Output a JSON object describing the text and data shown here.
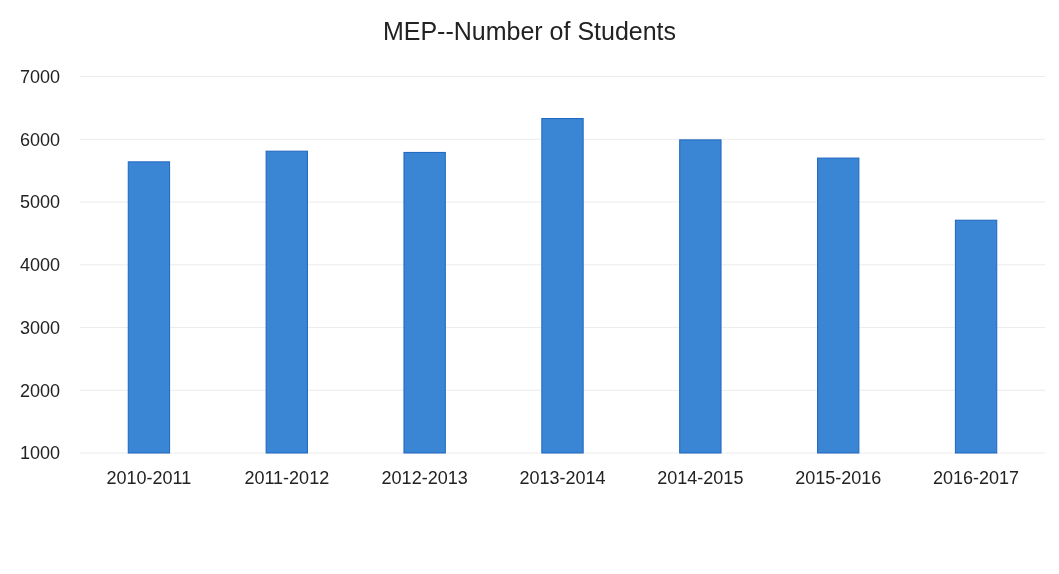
{
  "chart_data": {
    "type": "bar",
    "title": "MEP--Number of Students",
    "categories": [
      "2010-2011",
      "2011-2012",
      "2012-2013",
      "2013-2014",
      "2014-2015",
      "2015-2016",
      "2016-2017"
    ],
    "values": [
      5640,
      5810,
      5790,
      6330,
      5990,
      5700,
      4710
    ],
    "color": "#3a86d4",
    "ylim": [
      1000,
      7000
    ],
    "yticks": [
      1000,
      2000,
      3000,
      4000,
      5000,
      6000,
      7000
    ],
    "grid": "y"
  }
}
